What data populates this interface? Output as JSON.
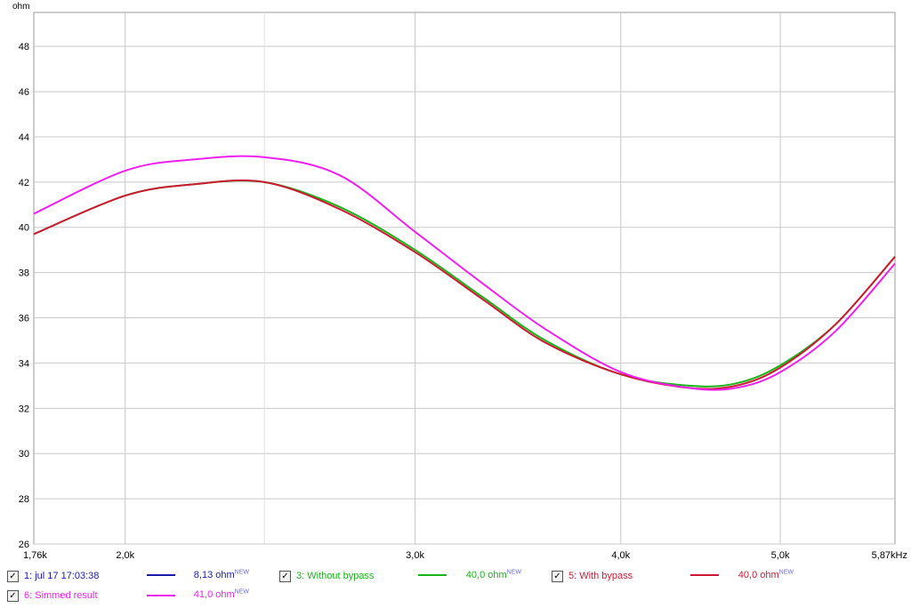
{
  "chart_data": {
    "type": "line",
    "title": "",
    "xlabel": "",
    "ylabel": "ohm",
    "x_unit": "Hz",
    "x_scale": "log",
    "xlim": [
      1760,
      5870
    ],
    "ylim": [
      26,
      49.5
    ],
    "grid": true,
    "x_ticks": [
      {
        "value": 1760,
        "label": "1,76k"
      },
      {
        "value": 2000,
        "label": "2,0k"
      },
      {
        "value": 3000,
        "label": "3,0k"
      },
      {
        "value": 4000,
        "label": "4,0k"
      },
      {
        "value": 5000,
        "label": "5,0k"
      },
      {
        "value": 5870,
        "label": "5,87kHz"
      }
    ],
    "x_minor_gridlines": [
      2430
    ],
    "y_ticks": [
      26,
      28,
      30,
      32,
      34,
      36,
      38,
      40,
      42,
      44,
      46,
      48
    ],
    "series": [
      {
        "name": "3: Without bypass",
        "color": "#1ab41a",
        "x": [
          1760,
          2000,
          2200,
          2430,
          2700,
          3000,
          3300,
          3600,
          4000,
          4400,
          4700,
          5000,
          5400,
          5870
        ],
        "values": [
          39.7,
          41.4,
          41.9,
          42.0,
          40.9,
          39.0,
          36.9,
          35.0,
          33.5,
          33.0,
          33.1,
          33.9,
          35.7,
          38.7
        ]
      },
      {
        "name": "5: With bypass",
        "color": "#cc1a33",
        "x": [
          1760,
          2000,
          2200,
          2430,
          2700,
          3000,
          3300,
          3600,
          4000,
          4400,
          4700,
          5000,
          5400,
          5870
        ],
        "values": [
          39.7,
          41.4,
          41.9,
          42.0,
          40.8,
          38.9,
          36.8,
          34.9,
          33.5,
          32.9,
          33.0,
          33.8,
          35.7,
          38.7
        ]
      },
      {
        "name": "6: Simmed result",
        "color": "#ee20ee",
        "x": [
          1760,
          2000,
          2200,
          2430,
          2700,
          3000,
          3300,
          3600,
          4000,
          4400,
          4700,
          5000,
          5400,
          5870
        ],
        "values": [
          40.6,
          42.5,
          43.0,
          43.1,
          42.3,
          39.8,
          37.5,
          35.5,
          33.6,
          32.9,
          32.9,
          33.6,
          35.4,
          38.4
        ]
      }
    ]
  },
  "legend": [
    {
      "label": "1: jul 17 17:03:38",
      "value": "8,13 ohm",
      "tag": "NEW",
      "color": "#1a1aa8",
      "checked": "✓"
    },
    {
      "label": "3: Without bypass",
      "value": "40,0 ohm",
      "tag": "NEW",
      "color": "#1ab41a",
      "checked": "✓"
    },
    {
      "label": "5: With bypass",
      "value": "40,0 ohm",
      "tag": "NEW",
      "color": "#cc1a33",
      "checked": "✓"
    },
    {
      "label": "6: Simmed result",
      "value": "41,0 ohm",
      "tag": "NEW",
      "color": "#ee20ee",
      "checked": "✓"
    }
  ]
}
